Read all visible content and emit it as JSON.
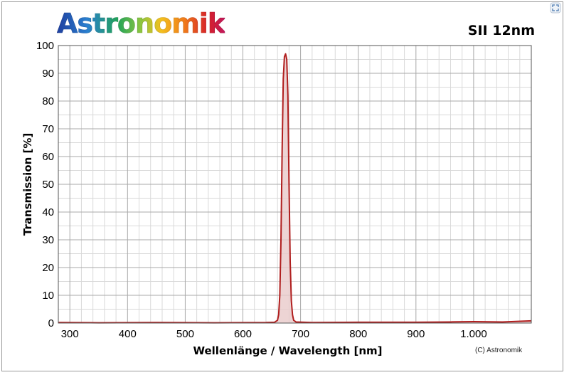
{
  "header": {
    "logo_text": "Astronomik",
    "filter_name": "SII 12nm"
  },
  "footer": {
    "copyright": "(C) Astronomik"
  },
  "icons": {
    "expand": "expand-icon"
  },
  "colors": {
    "curve": "#b01e1e",
    "fill": "#e9c9c9",
    "grid_major": "#a8a8a8",
    "grid_minor": "#d9d9d9"
  },
  "chart_data": {
    "type": "line",
    "title": "SII 12nm",
    "xlabel": "Wellenlänge / Wavelength [nm]",
    "ylabel": "Transmission [%]",
    "xlim": [
      280,
      1100
    ],
    "ylim": [
      0,
      100
    ],
    "x_ticks": [
      300,
      400,
      500,
      600,
      700,
      800,
      900,
      1000
    ],
    "x_tick_labels": [
      "300",
      "400",
      "500",
      "600",
      "700",
      "800",
      "900",
      "1.000"
    ],
    "y_ticks": [
      0,
      10,
      20,
      30,
      40,
      50,
      60,
      70,
      80,
      90,
      100
    ],
    "y_tick_labels": [
      "0",
      "10",
      "20",
      "30",
      "40",
      "50",
      "60",
      "70",
      "80",
      "90",
      "100"
    ],
    "grid": true,
    "series": [
      {
        "values": [
          [
            280,
            0.2
          ],
          [
            350,
            0.1
          ],
          [
            450,
            0.2
          ],
          [
            550,
            0.1
          ],
          [
            640,
            0.2
          ],
          [
            655,
            0.3
          ],
          [
            660,
            1
          ],
          [
            662,
            3
          ],
          [
            664,
            10
          ],
          [
            666,
            30
          ],
          [
            668,
            62
          ],
          [
            670,
            88
          ],
          [
            672,
            96
          ],
          [
            674,
            97
          ],
          [
            676,
            95
          ],
          [
            678,
            82
          ],
          [
            680,
            50
          ],
          [
            682,
            22
          ],
          [
            684,
            8
          ],
          [
            686,
            3
          ],
          [
            688,
            1
          ],
          [
            692,
            0.4
          ],
          [
            720,
            0.2
          ],
          [
            800,
            0.3
          ],
          [
            900,
            0.3
          ],
          [
            960,
            0.4
          ],
          [
            1000,
            0.5
          ],
          [
            1050,
            0.4
          ],
          [
            1100,
            0.8
          ]
        ]
      }
    ]
  }
}
